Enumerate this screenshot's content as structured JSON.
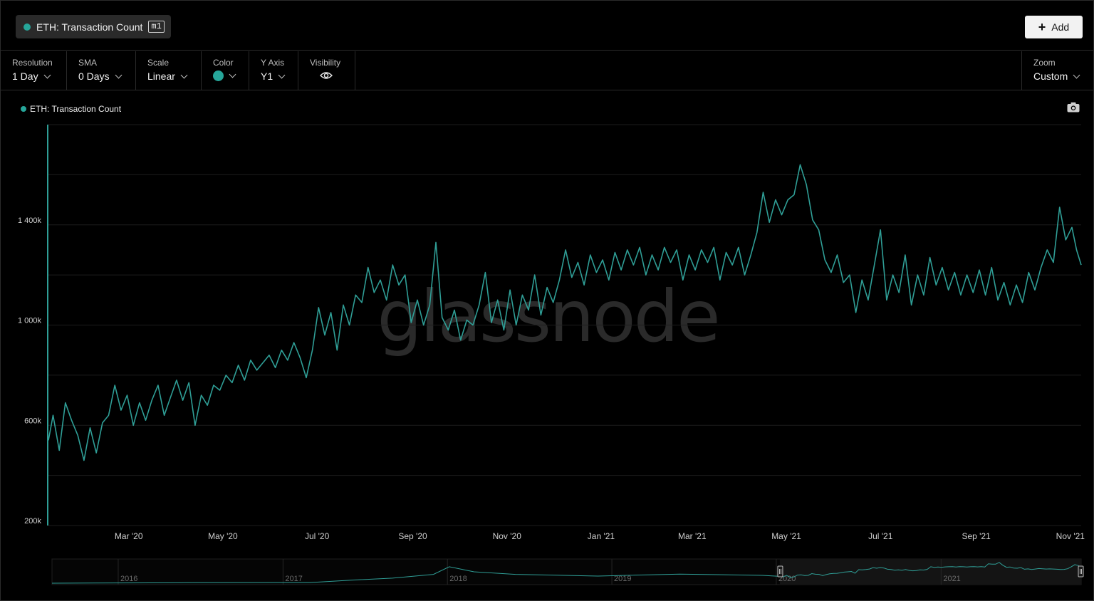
{
  "metric": {
    "name": "ETH: Transaction Count",
    "tag": "m1"
  },
  "add_button": "Add",
  "controls": {
    "resolution": {
      "label": "Resolution",
      "value": "1 Day"
    },
    "sma": {
      "label": "SMA",
      "value": "0 Days"
    },
    "scale": {
      "label": "Scale",
      "value": "Linear"
    },
    "color": {
      "label": "Color",
      "value": "#26a69a"
    },
    "yaxis": {
      "label": "Y Axis",
      "value": "Y1"
    },
    "visibility": {
      "label": "Visibility"
    },
    "zoom": {
      "label": "Zoom",
      "value": "Custom"
    }
  },
  "watermark": "glassnode",
  "colors": {
    "series": "#2f9e96",
    "background": "#000000",
    "grid": "#1c1c1c"
  },
  "chart_data": {
    "type": "line",
    "title": "",
    "legend": [
      "ETH: Transaction Count"
    ],
    "legend_position": "top-left",
    "grid": true,
    "ylim": [
      200000,
      1800000
    ],
    "y_ticks": [
      200000,
      600000,
      1000000,
      1400000
    ],
    "y_tick_labels": [
      "200k",
      "600k",
      "1 000k",
      "1 400k"
    ],
    "xlim": [
      "2020-01-09",
      "2021-11-08"
    ],
    "x_ticks": [
      "2020-03-01",
      "2020-05-01",
      "2020-07-01",
      "2020-09-01",
      "2020-11-01",
      "2021-01-01",
      "2021-03-01",
      "2021-05-01",
      "2021-07-01",
      "2021-09-01",
      "2021-11-01"
    ],
    "x_tick_labels": [
      "Mar '20",
      "May '20",
      "Jul '20",
      "Sep '20",
      "Nov '20",
      "Jan '21",
      "Mar '21",
      "May '21",
      "Jul '21",
      "Sep '21",
      "Nov '21"
    ],
    "series": [
      {
        "name": "ETH: Transaction Count",
        "points": [
          [
            "2020-01-09",
            540000
          ],
          [
            "2020-01-12",
            640000
          ],
          [
            "2020-01-16",
            500000
          ],
          [
            "2020-01-20",
            690000
          ],
          [
            "2020-01-24",
            620000
          ],
          [
            "2020-01-28",
            560000
          ],
          [
            "2020-02-01",
            460000
          ],
          [
            "2020-02-05",
            590000
          ],
          [
            "2020-02-09",
            490000
          ],
          [
            "2020-02-13",
            610000
          ],
          [
            "2020-02-17",
            640000
          ],
          [
            "2020-02-21",
            760000
          ],
          [
            "2020-02-25",
            660000
          ],
          [
            "2020-02-29",
            720000
          ],
          [
            "2020-03-04",
            600000
          ],
          [
            "2020-03-08",
            690000
          ],
          [
            "2020-03-12",
            620000
          ],
          [
            "2020-03-16",
            700000
          ],
          [
            "2020-03-20",
            760000
          ],
          [
            "2020-03-24",
            640000
          ],
          [
            "2020-03-28",
            710000
          ],
          [
            "2020-04-01",
            780000
          ],
          [
            "2020-04-05",
            700000
          ],
          [
            "2020-04-09",
            770000
          ],
          [
            "2020-04-13",
            600000
          ],
          [
            "2020-04-17",
            720000
          ],
          [
            "2020-04-21",
            680000
          ],
          [
            "2020-04-25",
            760000
          ],
          [
            "2020-04-29",
            740000
          ],
          [
            "2020-05-03",
            800000
          ],
          [
            "2020-05-07",
            770000
          ],
          [
            "2020-05-11",
            840000
          ],
          [
            "2020-05-15",
            780000
          ],
          [
            "2020-05-19",
            860000
          ],
          [
            "2020-05-23",
            820000
          ],
          [
            "2020-05-27",
            850000
          ],
          [
            "2020-05-31",
            880000
          ],
          [
            "2020-06-04",
            830000
          ],
          [
            "2020-06-08",
            900000
          ],
          [
            "2020-06-12",
            860000
          ],
          [
            "2020-06-16",
            930000
          ],
          [
            "2020-06-20",
            870000
          ],
          [
            "2020-06-24",
            790000
          ],
          [
            "2020-06-28",
            900000
          ],
          [
            "2020-07-02",
            1070000
          ],
          [
            "2020-07-06",
            960000
          ],
          [
            "2020-07-10",
            1050000
          ],
          [
            "2020-07-14",
            900000
          ],
          [
            "2020-07-18",
            1080000
          ],
          [
            "2020-07-22",
            1000000
          ],
          [
            "2020-07-26",
            1120000
          ],
          [
            "2020-07-30",
            1090000
          ],
          [
            "2020-08-03",
            1230000
          ],
          [
            "2020-08-07",
            1130000
          ],
          [
            "2020-08-11",
            1180000
          ],
          [
            "2020-08-15",
            1100000
          ],
          [
            "2020-08-19",
            1240000
          ],
          [
            "2020-08-23",
            1160000
          ],
          [
            "2020-08-27",
            1200000
          ],
          [
            "2020-08-31",
            1010000
          ],
          [
            "2020-09-04",
            1100000
          ],
          [
            "2020-09-08",
            1000000
          ],
          [
            "2020-09-12",
            1080000
          ],
          [
            "2020-09-16",
            1330000
          ],
          [
            "2020-09-20",
            1030000
          ],
          [
            "2020-09-24",
            980000
          ],
          [
            "2020-09-28",
            1060000
          ],
          [
            "2020-10-02",
            940000
          ],
          [
            "2020-10-06",
            1020000
          ],
          [
            "2020-10-10",
            1000000
          ],
          [
            "2020-10-14",
            1080000
          ],
          [
            "2020-10-18",
            1210000
          ],
          [
            "2020-10-22",
            1010000
          ],
          [
            "2020-10-26",
            1100000
          ],
          [
            "2020-10-30",
            980000
          ],
          [
            "2020-11-03",
            1140000
          ],
          [
            "2020-11-07",
            1000000
          ],
          [
            "2020-11-11",
            1120000
          ],
          [
            "2020-11-15",
            1060000
          ],
          [
            "2020-11-19",
            1200000
          ],
          [
            "2020-11-23",
            1040000
          ],
          [
            "2020-11-27",
            1150000
          ],
          [
            "2020-12-01",
            1090000
          ],
          [
            "2020-12-05",
            1180000
          ],
          [
            "2020-12-09",
            1300000
          ],
          [
            "2020-12-13",
            1190000
          ],
          [
            "2020-12-17",
            1250000
          ],
          [
            "2020-12-21",
            1160000
          ],
          [
            "2020-12-25",
            1280000
          ],
          [
            "2020-12-29",
            1210000
          ],
          [
            "2021-01-02",
            1260000
          ],
          [
            "2021-01-06",
            1180000
          ],
          [
            "2021-01-10",
            1290000
          ],
          [
            "2021-01-14",
            1220000
          ],
          [
            "2021-01-18",
            1300000
          ],
          [
            "2021-01-22",
            1240000
          ],
          [
            "2021-01-26",
            1310000
          ],
          [
            "2021-01-30",
            1200000
          ],
          [
            "2021-02-03",
            1280000
          ],
          [
            "2021-02-07",
            1220000
          ],
          [
            "2021-02-11",
            1310000
          ],
          [
            "2021-02-15",
            1250000
          ],
          [
            "2021-02-19",
            1300000
          ],
          [
            "2021-02-23",
            1180000
          ],
          [
            "2021-02-27",
            1280000
          ],
          [
            "2021-03-03",
            1220000
          ],
          [
            "2021-03-07",
            1300000
          ],
          [
            "2021-03-11",
            1250000
          ],
          [
            "2021-03-15",
            1310000
          ],
          [
            "2021-03-19",
            1180000
          ],
          [
            "2021-03-23",
            1290000
          ],
          [
            "2021-03-27",
            1240000
          ],
          [
            "2021-03-31",
            1310000
          ],
          [
            "2021-04-04",
            1200000
          ],
          [
            "2021-04-08",
            1280000
          ],
          [
            "2021-04-12",
            1370000
          ],
          [
            "2021-04-16",
            1530000
          ],
          [
            "2021-04-20",
            1410000
          ],
          [
            "2021-04-24",
            1500000
          ],
          [
            "2021-04-28",
            1440000
          ],
          [
            "2021-05-02",
            1500000
          ],
          [
            "2021-05-06",
            1520000
          ],
          [
            "2021-05-10",
            1640000
          ],
          [
            "2021-05-14",
            1560000
          ],
          [
            "2021-05-18",
            1420000
          ],
          [
            "2021-05-22",
            1380000
          ],
          [
            "2021-05-26",
            1260000
          ],
          [
            "2021-05-30",
            1210000
          ],
          [
            "2021-06-03",
            1280000
          ],
          [
            "2021-06-07",
            1170000
          ],
          [
            "2021-06-11",
            1200000
          ],
          [
            "2021-06-15",
            1050000
          ],
          [
            "2021-06-19",
            1180000
          ],
          [
            "2021-06-23",
            1100000
          ],
          [
            "2021-06-27",
            1240000
          ],
          [
            "2021-07-01",
            1380000
          ],
          [
            "2021-07-05",
            1100000
          ],
          [
            "2021-07-09",
            1200000
          ],
          [
            "2021-07-13",
            1130000
          ],
          [
            "2021-07-17",
            1280000
          ],
          [
            "2021-07-21",
            1080000
          ],
          [
            "2021-07-25",
            1200000
          ],
          [
            "2021-07-29",
            1120000
          ],
          [
            "2021-08-02",
            1270000
          ],
          [
            "2021-08-06",
            1160000
          ],
          [
            "2021-08-10",
            1230000
          ],
          [
            "2021-08-14",
            1140000
          ],
          [
            "2021-08-18",
            1210000
          ],
          [
            "2021-08-22",
            1120000
          ],
          [
            "2021-08-26",
            1200000
          ],
          [
            "2021-08-30",
            1130000
          ],
          [
            "2021-09-03",
            1220000
          ],
          [
            "2021-09-07",
            1120000
          ],
          [
            "2021-09-11",
            1230000
          ],
          [
            "2021-09-15",
            1100000
          ],
          [
            "2021-09-19",
            1170000
          ],
          [
            "2021-09-23",
            1080000
          ],
          [
            "2021-09-27",
            1160000
          ],
          [
            "2021-10-01",
            1090000
          ],
          [
            "2021-10-05",
            1210000
          ],
          [
            "2021-10-09",
            1140000
          ],
          [
            "2021-10-13",
            1230000
          ],
          [
            "2021-10-17",
            1300000
          ],
          [
            "2021-10-21",
            1250000
          ],
          [
            "2021-10-25",
            1470000
          ],
          [
            "2021-10-29",
            1340000
          ],
          [
            "2021-11-02",
            1390000
          ],
          [
            "2021-11-05",
            1300000
          ],
          [
            "2021-11-08",
            1240000
          ]
        ]
      }
    ],
    "navigator": {
      "x_labels": [
        "2016",
        "2017",
        "2018",
        "2019",
        "2020",
        "2021"
      ],
      "selected_range": [
        "2020-01-09",
        "2021-11-08"
      ]
    }
  }
}
